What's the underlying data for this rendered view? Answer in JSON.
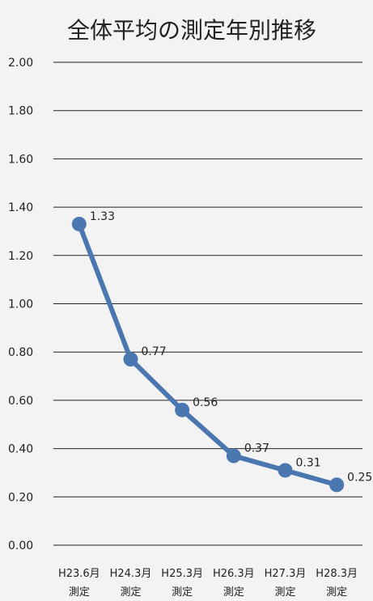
{
  "chart_data": {
    "type": "line",
    "title": "全体平均の測定年別推移",
    "xlabel": "",
    "ylabel": "",
    "categories": [
      [
        "H23.6月",
        "測定"
      ],
      [
        "H24.3月",
        "測定"
      ],
      [
        "H25.3月",
        "測定"
      ],
      [
        "H26.3月",
        "測定"
      ],
      [
        "H27.3月",
        "測定"
      ],
      [
        "H28.3月",
        "測定"
      ]
    ],
    "values": [
      1.33,
      0.77,
      0.56,
      0.37,
      0.31,
      0.25
    ],
    "data_labels": [
      "1.33",
      "0.77",
      "0.56",
      "0.37",
      "0.31",
      "0.25"
    ],
    "y_ticks": [
      "0.00",
      "0.20",
      "0.40",
      "0.60",
      "0.80",
      "1.00",
      "1.20",
      "1.40",
      "1.60",
      "1.80",
      "2.00"
    ],
    "ylim": [
      0,
      2
    ],
    "grid": true,
    "legend": "none",
    "colors": {
      "series": "#4a77b0",
      "grid": "#222222",
      "background": "#f3f3f3",
      "text": "#222222"
    }
  }
}
